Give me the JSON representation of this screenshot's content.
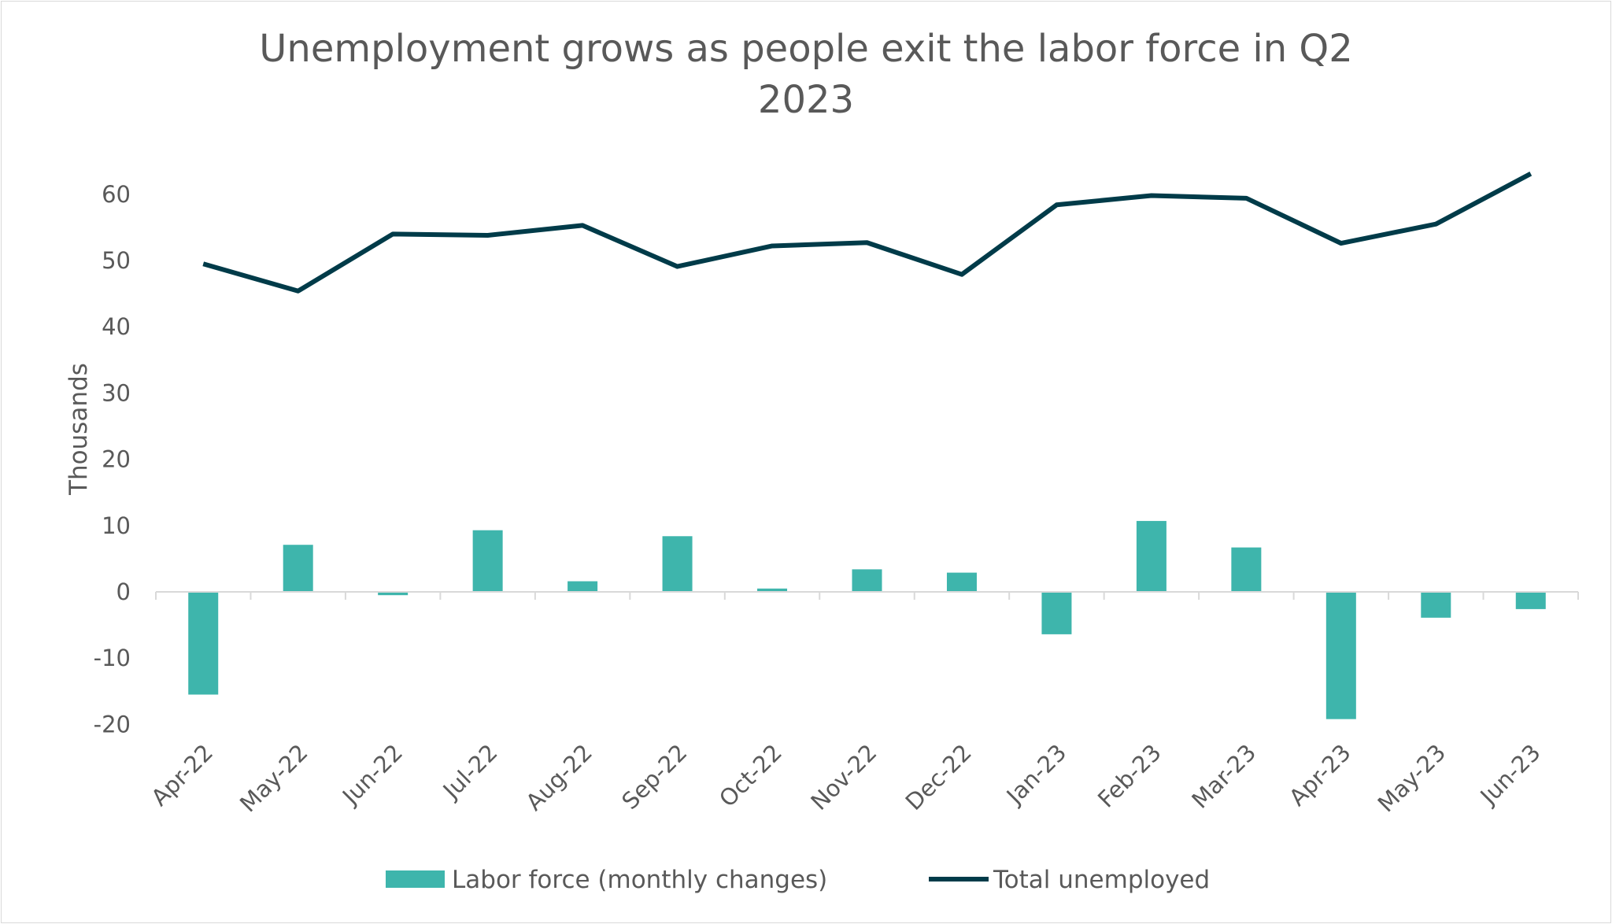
{
  "chart_data": {
    "type": "bar+line",
    "title_lines": [
      "Unemployment grows as people exit the labor force in Q2",
      "2023"
    ],
    "ylabel": "Thousands",
    "xlabel": "",
    "ylim": [
      -20,
      70
    ],
    "yticks": [
      -20,
      -10,
      0,
      10,
      20,
      30,
      40,
      50,
      60
    ],
    "grid": false,
    "legend_position": "bottom",
    "categories": [
      "Apr-22",
      "May-22",
      "Jun-22",
      "Jul-22",
      "Aug-22",
      "Sep-22",
      "Oct-22",
      "Nov-22",
      "Dec-22",
      "Jan-23",
      "Feb-23",
      "Mar-23",
      "Apr-23",
      "May-23",
      "Jun-23"
    ],
    "series": [
      {
        "name": "Labor force (monthly changes)",
        "kind": "bar",
        "color": "#3EB5AC",
        "values": [
          -15.5,
          7.1,
          -0.5,
          9.3,
          1.6,
          8.4,
          0.5,
          3.4,
          2.9,
          -6.4,
          10.7,
          6.7,
          -19.2,
          -3.9,
          -2.6
        ]
      },
      {
        "name": "Total unemployed",
        "kind": "line",
        "color": "#003B49",
        "values": [
          49.5,
          45.4,
          54.0,
          53.8,
          55.3,
          49.1,
          52.2,
          52.7,
          47.9,
          58.4,
          59.8,
          59.4,
          52.6,
          55.5,
          63.1
        ]
      }
    ]
  }
}
